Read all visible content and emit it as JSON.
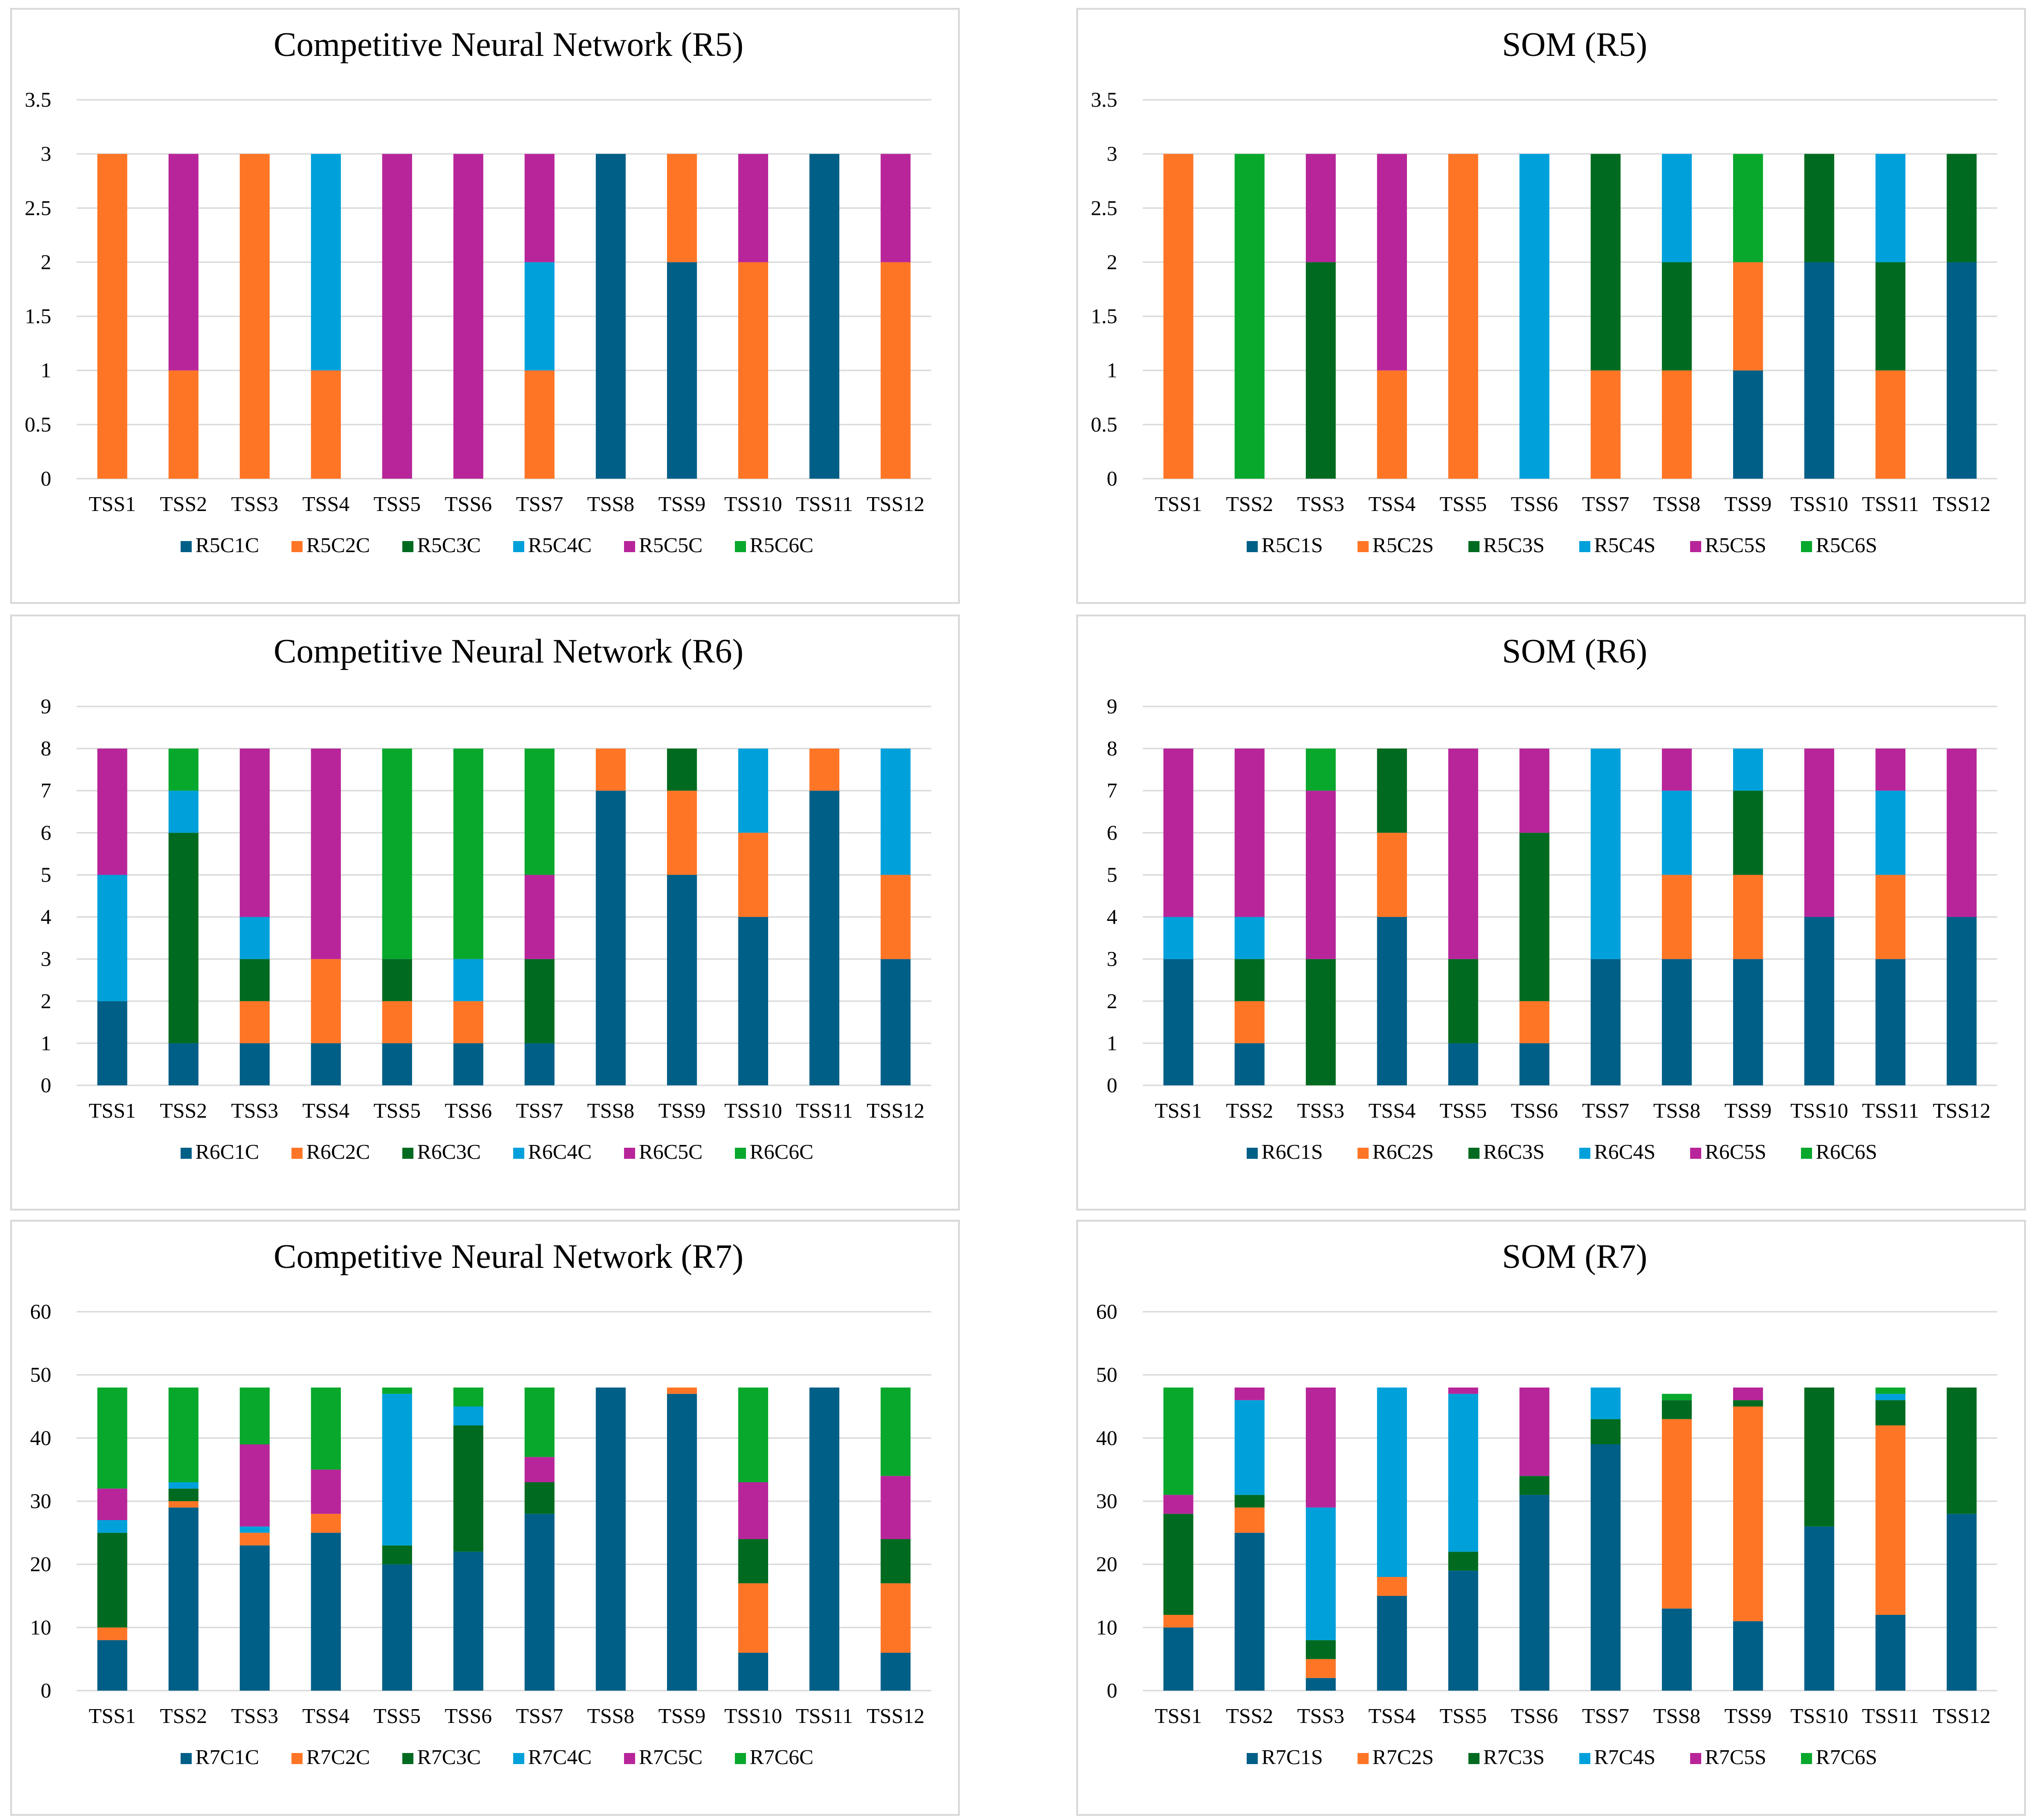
{
  "colors": {
    "c1": "#005F87",
    "c2": "#FF7526",
    "c3": "#006B20",
    "c4": "#00A1DB",
    "c5": "#B8259A",
    "c6": "#08A82D"
  },
  "chart_data": [
    {
      "id": "cnn-r5",
      "type": "bar",
      "stacked": true,
      "title": "Competitive Neural Network (R5)",
      "categories": [
        "TSS1",
        "TSS2",
        "TSS3",
        "TSS4",
        "TSS5",
        "TSS6",
        "TSS7",
        "TSS8",
        "TSS9",
        "TSS10",
        "TSS11",
        "TSS12"
      ],
      "ylim": [
        0,
        3.5
      ],
      "yticks": [
        0,
        0.5,
        1,
        1.5,
        2,
        2.5,
        3,
        3.5
      ],
      "ytick_labels": [
        "0",
        "0.5",
        "1",
        "1.5",
        "2",
        "2.5",
        "3",
        "3.5"
      ],
      "legend_position": "bottom",
      "series": [
        {
          "name": "R5C1C",
          "color": "#005F87",
          "values": [
            0,
            0,
            0,
            0,
            0,
            0,
            0,
            3,
            2,
            0,
            3,
            0
          ]
        },
        {
          "name": "R5C2C",
          "color": "#FF7526",
          "values": [
            3,
            1,
            3,
            1,
            0,
            0,
            1,
            0,
            1,
            2,
            0,
            2
          ]
        },
        {
          "name": "R5C3C",
          "color": "#006B20",
          "values": [
            0,
            0,
            0,
            0,
            0,
            0,
            0,
            0,
            0,
            0,
            0,
            0
          ]
        },
        {
          "name": "R5C4C",
          "color": "#00A1DB",
          "values": [
            0,
            0,
            0,
            2,
            0,
            0,
            1,
            0,
            0,
            0,
            0,
            0
          ]
        },
        {
          "name": "R5C5C",
          "color": "#B8259A",
          "values": [
            0,
            2,
            0,
            0,
            3,
            3,
            1,
            0,
            0,
            1,
            0,
            1
          ]
        },
        {
          "name": "R5C6C",
          "color": "#08A82D",
          "values": [
            0,
            0,
            0,
            0,
            0,
            0,
            0,
            0,
            0,
            0,
            0,
            0
          ]
        }
      ]
    },
    {
      "id": "som-r5",
      "type": "bar",
      "stacked": true,
      "title": "SOM (R5)",
      "categories": [
        "TSS1",
        "TSS2",
        "TSS3",
        "TSS4",
        "TSS5",
        "TSS6",
        "TSS7",
        "TSS8",
        "TSS9",
        "TSS10",
        "TSS11",
        "TSS12"
      ],
      "ylim": [
        0,
        3.5
      ],
      "yticks": [
        0,
        0.5,
        1,
        1.5,
        2,
        2.5,
        3,
        3.5
      ],
      "ytick_labels": [
        "0",
        "0.5",
        "1",
        "1.5",
        "2",
        "2.5",
        "3",
        "3.5"
      ],
      "legend_position": "bottom",
      "series": [
        {
          "name": "R5C1S",
          "color": "#005F87",
          "values": [
            0,
            0,
            0,
            0,
            0,
            0,
            0,
            0,
            1,
            2,
            0,
            2
          ]
        },
        {
          "name": "R5C2S",
          "color": "#FF7526",
          "values": [
            3,
            0,
            0,
            1,
            3,
            0,
            1,
            1,
            1,
            0,
            1,
            0
          ]
        },
        {
          "name": "R5C3S",
          "color": "#006B20",
          "values": [
            0,
            0,
            2,
            0,
            0,
            0,
            2,
            1,
            0,
            1,
            1,
            1
          ]
        },
        {
          "name": "R5C4S",
          "color": "#00A1DB",
          "values": [
            0,
            0,
            0,
            0,
            0,
            3,
            0,
            1,
            0,
            0,
            1,
            0
          ]
        },
        {
          "name": "R5C5S",
          "color": "#B8259A",
          "values": [
            0,
            0,
            1,
            2,
            0,
            0,
            0,
            0,
            0,
            0,
            0,
            0
          ]
        },
        {
          "name": "R5C6S",
          "color": "#08A82D",
          "values": [
            0,
            3,
            0,
            0,
            0,
            0,
            0,
            0,
            1,
            0,
            0,
            0
          ]
        }
      ]
    },
    {
      "id": "cnn-r6",
      "type": "bar",
      "stacked": true,
      "title": "Competitive Neural Network (R6)",
      "categories": [
        "TSS1",
        "TSS2",
        "TSS3",
        "TSS4",
        "TSS5",
        "TSS6",
        "TSS7",
        "TSS8",
        "TSS9",
        "TSS10",
        "TSS11",
        "TSS12"
      ],
      "ylim": [
        0,
        9
      ],
      "yticks": [
        0,
        1,
        2,
        3,
        4,
        5,
        6,
        7,
        8,
        9
      ],
      "ytick_labels": [
        "0",
        "1",
        "2",
        "3",
        "4",
        "5",
        "6",
        "7",
        "8",
        "9"
      ],
      "legend_position": "bottom",
      "series": [
        {
          "name": "R6C1C",
          "color": "#005F87",
          "values": [
            2,
            1,
            1,
            1,
            1,
            1,
            1,
            7,
            5,
            4,
            7,
            3
          ]
        },
        {
          "name": "R6C2C",
          "color": "#FF7526",
          "values": [
            0,
            0,
            1,
            2,
            1,
            1,
            0,
            1,
            2,
            2,
            1,
            2
          ]
        },
        {
          "name": "R6C3C",
          "color": "#006B20",
          "values": [
            0,
            5,
            1,
            0,
            1,
            0,
            2,
            0,
            1,
            0,
            0,
            0
          ]
        },
        {
          "name": "R6C4C",
          "color": "#00A1DB",
          "values": [
            3,
            1,
            1,
            0,
            0,
            1,
            0,
            0,
            0,
            2,
            0,
            3
          ]
        },
        {
          "name": "R6C5C",
          "color": "#B8259A",
          "values": [
            3,
            0,
            4,
            5,
            0,
            0,
            2,
            0,
            0,
            0,
            0,
            0
          ]
        },
        {
          "name": "R6C6C",
          "color": "#08A82D",
          "values": [
            0,
            1,
            0,
            0,
            5,
            5,
            3,
            0,
            0,
            0,
            0,
            0
          ]
        }
      ]
    },
    {
      "id": "som-r6",
      "type": "bar",
      "stacked": true,
      "title": "SOM (R6)",
      "categories": [
        "TSS1",
        "TSS2",
        "TSS3",
        "TSS4",
        "TSS5",
        "TSS6",
        "TSS7",
        "TSS8",
        "TSS9",
        "TSS10",
        "TSS11",
        "TSS12"
      ],
      "ylim": [
        0,
        9
      ],
      "yticks": [
        0,
        1,
        2,
        3,
        4,
        5,
        6,
        7,
        8,
        9
      ],
      "ytick_labels": [
        "0",
        "1",
        "2",
        "3",
        "4",
        "5",
        "6",
        "7",
        "8",
        "9"
      ],
      "legend_position": "bottom",
      "series": [
        {
          "name": "R6C1S",
          "color": "#005F87",
          "values": [
            3,
            1,
            0,
            4,
            1,
            1,
            3,
            3,
            3,
            4,
            3,
            4
          ]
        },
        {
          "name": "R6C2S",
          "color": "#FF7526",
          "values": [
            0,
            1,
            0,
            2,
            0,
            1,
            0,
            2,
            2,
            0,
            2,
            0
          ]
        },
        {
          "name": "R6C3S",
          "color": "#006B20",
          "values": [
            0,
            1,
            3,
            2,
            2,
            4,
            0,
            0,
            2,
            0,
            0,
            0
          ]
        },
        {
          "name": "R6C4S",
          "color": "#00A1DB",
          "values": [
            1,
            1,
            0,
            0,
            0,
            0,
            5,
            2,
            1,
            0,
            2,
            0
          ]
        },
        {
          "name": "R6C5S",
          "color": "#B8259A",
          "values": [
            4,
            4,
            4,
            0,
            5,
            2,
            0,
            1,
            0,
            4,
            1,
            4
          ]
        },
        {
          "name": "R6C6S",
          "color": "#08A82D",
          "values": [
            0,
            0,
            1,
            0,
            0,
            0,
            0,
            0,
            0,
            0,
            0,
            0
          ]
        }
      ]
    },
    {
      "id": "cnn-r7",
      "type": "bar",
      "stacked": true,
      "title": "Competitive Neural Network (R7)",
      "categories": [
        "TSS1",
        "TSS2",
        "TSS3",
        "TSS4",
        "TSS5",
        "TSS6",
        "TSS7",
        "TSS8",
        "TSS9",
        "TSS10",
        "TSS11",
        "TSS12"
      ],
      "ylim": [
        0,
        60
      ],
      "yticks": [
        0,
        10,
        20,
        30,
        40,
        50,
        60
      ],
      "ytick_labels": [
        "0",
        "10",
        "20",
        "30",
        "40",
        "50",
        "60"
      ],
      "legend_position": "bottom",
      "series": [
        {
          "name": "R7C1C",
          "color": "#005F87",
          "values": [
            8,
            29,
            23,
            25,
            20,
            22,
            28,
            48,
            47,
            6,
            48,
            6
          ]
        },
        {
          "name": "R7C2C",
          "color": "#FF7526",
          "values": [
            2,
            1,
            2,
            3,
            0,
            0,
            0,
            0,
            1,
            11,
            0,
            11
          ]
        },
        {
          "name": "R7C3C",
          "color": "#006B20",
          "values": [
            15,
            2,
            0,
            0,
            3,
            20,
            5,
            0,
            0,
            7,
            0,
            7
          ]
        },
        {
          "name": "R7C4C",
          "color": "#00A1DB",
          "values": [
            2,
            1,
            1,
            0,
            24,
            3,
            0,
            0,
            0,
            0,
            0,
            0
          ]
        },
        {
          "name": "R7C5C",
          "color": "#B8259A",
          "values": [
            5,
            0,
            13,
            7,
            0,
            0,
            4,
            0,
            0,
            9,
            0,
            10
          ]
        },
        {
          "name": "R7C6C",
          "color": "#08A82D",
          "values": [
            16,
            15,
            9,
            13,
            1,
            3,
            11,
            0,
            0,
            15,
            0,
            14
          ]
        }
      ]
    },
    {
      "id": "som-r7",
      "type": "bar",
      "stacked": true,
      "title": "SOM (R7)",
      "categories": [
        "TSS1",
        "TSS2",
        "TSS3",
        "TSS4",
        "TSS5",
        "TSS6",
        "TSS7",
        "TSS8",
        "TSS9",
        "TSS10",
        "TSS11",
        "TSS12"
      ],
      "ylim": [
        0,
        60
      ],
      "yticks": [
        0,
        10,
        20,
        30,
        40,
        50,
        60
      ],
      "ytick_labels": [
        "0",
        "10",
        "20",
        "30",
        "40",
        "50",
        "60"
      ],
      "legend_position": "bottom",
      "series": [
        {
          "name": "R7C1S",
          "color": "#005F87",
          "values": [
            10,
            25,
            2,
            15,
            19,
            31,
            39,
            13,
            11,
            26,
            12,
            28
          ]
        },
        {
          "name": "R7C2S",
          "color": "#FF7526",
          "values": [
            2,
            4,
            3,
            3,
            0,
            0,
            0,
            30,
            34,
            0,
            30,
            0
          ]
        },
        {
          "name": "R7C3S",
          "color": "#006B20",
          "values": [
            16,
            2,
            3,
            0,
            3,
            3,
            4,
            3,
            1,
            22,
            4,
            20
          ]
        },
        {
          "name": "R7C4S",
          "color": "#00A1DB",
          "values": [
            0,
            15,
            21,
            30,
            25,
            0,
            5,
            0,
            0,
            0,
            1,
            0
          ]
        },
        {
          "name": "R7C5S",
          "color": "#B8259A",
          "values": [
            3,
            2,
            19,
            0,
            1,
            14,
            0,
            0,
            2,
            0,
            0,
            0
          ]
        },
        {
          "name": "R7C6S",
          "color": "#08A82D",
          "values": [
            17,
            0,
            0,
            0,
            0,
            0,
            0,
            1,
            0,
            0,
            1,
            0
          ]
        }
      ]
    }
  ]
}
